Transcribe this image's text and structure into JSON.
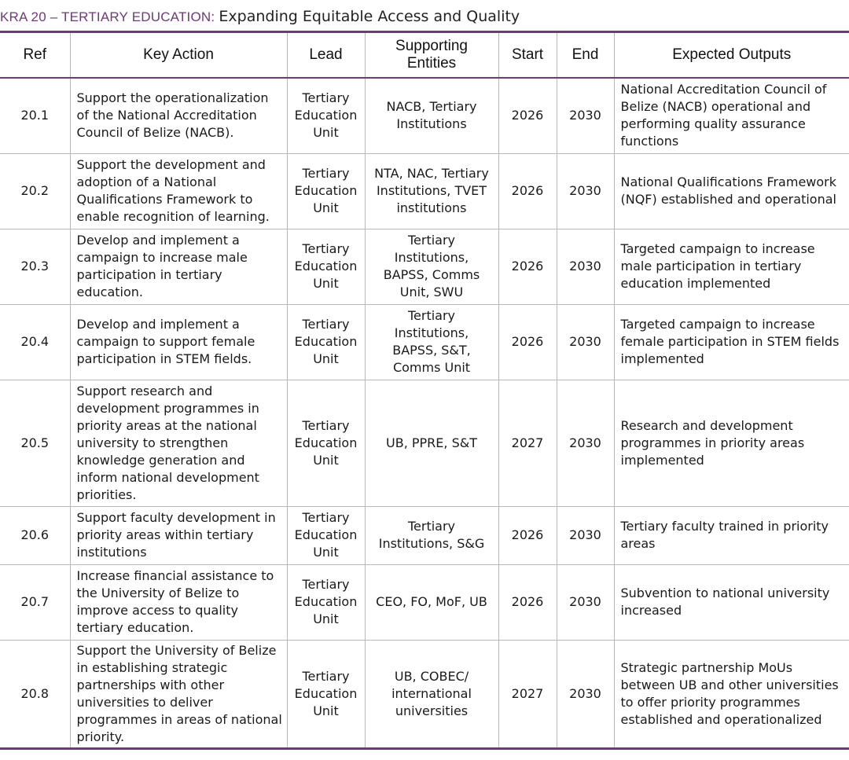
{
  "header": {
    "kra_label": "KRA 20 – TERTIARY EDUCATION:",
    "subtitle": "Expanding Equitable Access and Quality"
  },
  "table": {
    "columns": [
      "Ref",
      "Key Action",
      "Lead",
      "Supporting Entities",
      "Start",
      "End",
      "Expected Outputs"
    ],
    "rows": [
      {
        "ref": "20.1",
        "action": "Support the operationalization of the National Accreditation Council of Belize (NACB).",
        "lead": "Tertiary Education Unit",
        "supporting": "NACB, Tertiary Institutions",
        "start": "2026",
        "end": "2030",
        "outputs": "National Accreditation Council of Belize (NACB) operational and performing quality assurance functions"
      },
      {
        "ref": "20.2",
        "action": "Support the development and adoption of a National Qualifications Framework to enable recognition of learning.",
        "lead": "Tertiary Education Unit",
        "supporting": "NTA, NAC, Tertiary Institutions, TVET institutions",
        "start": "2026",
        "end": "2030",
        "outputs": "National Qualifications Framework (NQF) established and operational"
      },
      {
        "ref": "20.3",
        "action": "Develop and implement a campaign to increase male participation in tertiary education.",
        "lead": "Tertiary Education Unit",
        "supporting": "Tertiary Institutions, BAPSS, Comms Unit, SWU",
        "start": "2026",
        "end": "2030",
        "outputs": "Targeted campaign to increase male participation in tertiary education implemented"
      },
      {
        "ref": "20.4",
        "action": "Develop and implement a campaign to support female participation in STEM fields.",
        "lead": "Tertiary Education Unit",
        "supporting": "Tertiary Institutions, BAPSS, S&T, Comms Unit",
        "start": "2026",
        "end": "2030",
        "outputs": "Targeted campaign to increase female participation in STEM fields implemented"
      },
      {
        "ref": "20.5",
        "action": "Support research and development programmes in priority areas at the national university to strengthen knowledge generation and inform national development priorities.",
        "lead": "Tertiary Education Unit",
        "supporting": "UB, PPRE, S&T",
        "start": "2027",
        "end": "2030",
        "outputs": "Research and development programmes in priority areas implemented"
      },
      {
        "ref": "20.6",
        "action": "Support faculty development in priority areas within tertiary institutions",
        "lead": "Tertiary Education Unit",
        "supporting": "Tertiary Institutions, S&G",
        "start": "2026",
        "end": "2030",
        "outputs": "Tertiary faculty trained in priority areas"
      },
      {
        "ref": "20.7",
        "action": "Increase financial assistance to the University of Belize to improve access to quality tertiary education.",
        "lead": "Tertiary Education Unit",
        "supporting": "CEO, FO, MoF, UB",
        "start": "2026",
        "end": "2030",
        "outputs": "Subvention to national university increased"
      },
      {
        "ref": "20.8",
        "action": "Support the University of Belize in establishing strategic partnerships with other universities to deliver programmes in areas of national priority.",
        "lead": "Tertiary Education Unit",
        "supporting": "UB, COBEC/ international universities",
        "start": "2027",
        "end": "2030",
        "outputs": "Strategic partnership MoUs between UB and other universities to offer priority programmes established and operationalized"
      }
    ]
  }
}
